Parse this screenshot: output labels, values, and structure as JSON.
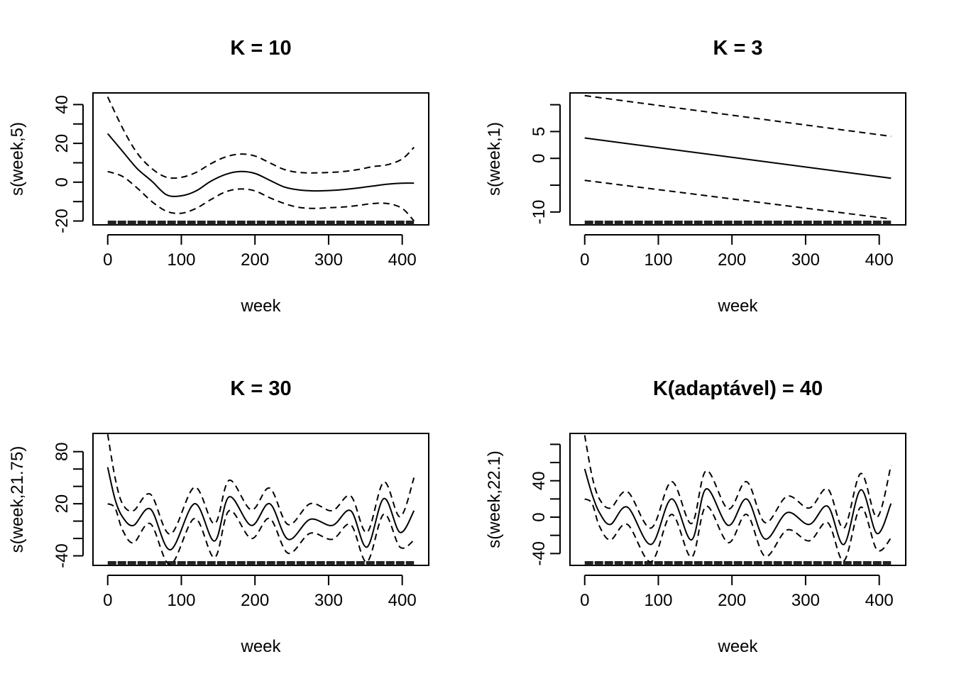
{
  "chart_data": [
    {
      "type": "line",
      "title": "K =  10",
      "xlabel": "week",
      "ylabel": "s(week,5)",
      "xlim": [
        -20,
        436
      ],
      "ylim": [
        -22,
        46
      ],
      "x_ticks": [
        0,
        100,
        200,
        300,
        400
      ],
      "y_ticks": [
        -20,
        -10,
        0,
        10,
        20,
        30,
        40
      ],
      "y_tick_labels": [
        "-20",
        "",
        "0",
        "",
        "20",
        "",
        "40"
      ],
      "rug_range": [
        0,
        416
      ],
      "series": [
        {
          "name": "fit",
          "x": [
            0,
            20,
            40,
            60,
            80,
            100,
            120,
            140,
            160,
            180,
            200,
            220,
            240,
            260,
            280,
            300,
            320,
            340,
            360,
            380,
            400,
            416
          ],
          "values": [
            25,
            16,
            7,
            0.5,
            -6.5,
            -7,
            -4.5,
            0.5,
            4,
            5.5,
            4.5,
            1,
            -2.5,
            -4,
            -4.5,
            -4.3,
            -3.8,
            -3,
            -2,
            -1,
            -0.5,
            -0.5
          ]
        },
        {
          "name": "upper",
          "x": [
            0,
            20,
            40,
            60,
            80,
            100,
            120,
            140,
            160,
            180,
            200,
            220,
            240,
            260,
            280,
            300,
            320,
            340,
            360,
            380,
            400,
            416
          ],
          "values": [
            44,
            28,
            15,
            7,
            2.5,
            2.5,
            5,
            9.5,
            13,
            14.5,
            13.5,
            10,
            6.5,
            5,
            4.8,
            5,
            5.5,
            6.5,
            8,
            9,
            12,
            18
          ]
        },
        {
          "name": "lower",
          "x": [
            0,
            20,
            40,
            60,
            80,
            100,
            120,
            140,
            160,
            180,
            200,
            220,
            240,
            260,
            280,
            300,
            320,
            340,
            360,
            380,
            400,
            416
          ],
          "values": [
            5.5,
            3,
            -3,
            -10,
            -15,
            -16,
            -13.5,
            -9,
            -5,
            -3.5,
            -4.5,
            -8,
            -11,
            -13,
            -13.5,
            -13.2,
            -12.8,
            -12,
            -11,
            -11,
            -13.5,
            -20
          ]
        }
      ]
    },
    {
      "type": "line",
      "title": "K = 3",
      "xlabel": "week",
      "ylabel": "s(week,1)",
      "xlim": [
        -20,
        436
      ],
      "ylim": [
        -12.4,
        12.2
      ],
      "x_ticks": [
        0,
        100,
        200,
        300,
        400
      ],
      "y_ticks": [
        -10,
        -5,
        0,
        5,
        10
      ],
      "y_tick_labels": [
        "-10",
        "",
        "0",
        "5",
        ""
      ],
      "rug_range": [
        0,
        416
      ],
      "series": [
        {
          "name": "fit",
          "x": [
            0,
            416
          ],
          "values": [
            3.8,
            -3.7
          ]
        },
        {
          "name": "upper",
          "x": [
            0,
            416
          ],
          "values": [
            11.7,
            4.1
          ]
        },
        {
          "name": "lower",
          "x": [
            0,
            416
          ],
          "values": [
            -4.1,
            -11.3
          ]
        }
      ]
    },
    {
      "type": "line",
      "title": "K = 30",
      "xlabel": "week",
      "ylabel": "s(week,21.75)",
      "xlim": [
        -20,
        436
      ],
      "ylim": [
        -51,
        101
      ],
      "x_ticks": [
        0,
        100,
        200,
        300,
        400
      ],
      "y_ticks": [
        -40,
        -20,
        0,
        20,
        40,
        60,
        80
      ],
      "y_tick_labels": [
        "-40",
        "",
        "",
        "20",
        "",
        "",
        "80"
      ],
      "rug_range": [
        0,
        416
      ],
      "series": [
        {
          "name": "fit",
          "x": [
            0,
            10,
            20,
            35,
            58,
            85,
            118,
            145,
            165,
            195,
            220,
            245,
            275,
            305,
            330,
            352,
            375,
            397,
            416
          ],
          "values": [
            62,
            25,
            5,
            -5,
            14,
            -33,
            20,
            -23,
            28,
            -5,
            20,
            -21,
            2,
            -5,
            12,
            -30,
            26,
            -13,
            12
          ]
        },
        {
          "name": "upper",
          "x": [
            0,
            10,
            20,
            35,
            58,
            85,
            118,
            145,
            165,
            195,
            220,
            245,
            275,
            305,
            330,
            352,
            375,
            397,
            416
          ],
          "values": [
            100,
            50,
            20,
            12,
            31,
            -15,
            39,
            -3,
            47,
            13,
            38,
            -4,
            20,
            12,
            29,
            -13,
            45,
            5,
            50
          ]
        },
        {
          "name": "lower",
          "x": [
            0,
            10,
            20,
            35,
            58,
            85,
            118,
            145,
            165,
            195,
            220,
            245,
            275,
            305,
            330,
            352,
            375,
            397,
            416
          ],
          "values": [
            20,
            15,
            -10,
            -25,
            -3,
            -50,
            3,
            -42,
            12,
            -20,
            3,
            -37,
            -14,
            -21,
            -4,
            -47,
            8,
            -30,
            -22
          ]
        }
      ]
    },
    {
      "type": "line",
      "title": "K(adaptável) = 40",
      "xlabel": "week",
      "ylabel": "s(week,22.1)",
      "xlim": [
        -20,
        436
      ],
      "ylim": [
        -53,
        92
      ],
      "x_ticks": [
        0,
        100,
        200,
        300,
        400
      ],
      "y_ticks": [
        -40,
        -20,
        0,
        20,
        40,
        60,
        80
      ],
      "y_tick_labels": [
        "-40",
        "",
        "0",
        "",
        "40",
        "",
        ""
      ],
      "rug_range": [
        0,
        416
      ],
      "series": [
        {
          "name": "fit",
          "x": [
            0,
            10,
            20,
            35,
            58,
            90,
            118,
            145,
            165,
            195,
            220,
            245,
            275,
            305,
            330,
            352,
            375,
            397,
            416
          ],
          "values": [
            53,
            25,
            5,
            -8,
            11,
            -30,
            20,
            -25,
            31,
            -9,
            20,
            -24,
            5,
            -8,
            12,
            -30,
            30,
            -18,
            15
          ]
        },
        {
          "name": "upper",
          "x": [
            0,
            10,
            20,
            35,
            58,
            90,
            118,
            145,
            165,
            195,
            220,
            245,
            275,
            305,
            330,
            352,
            375,
            397,
            416
          ],
          "values": [
            90,
            45,
            20,
            10,
            28,
            -12,
            39,
            -7,
            51,
            9,
            39,
            -6,
            23,
            10,
            31,
            -12,
            48,
            0,
            57
          ]
        },
        {
          "name": "lower",
          "x": [
            0,
            10,
            20,
            35,
            58,
            90,
            118,
            145,
            165,
            195,
            220,
            245,
            275,
            305,
            330,
            352,
            375,
            397,
            416
          ],
          "values": [
            20,
            15,
            -10,
            -25,
            -8,
            -49,
            3,
            -44,
            12,
            -28,
            3,
            -43,
            -14,
            -26,
            -6,
            -48,
            11,
            -36,
            -23
          ]
        }
      ]
    }
  ]
}
